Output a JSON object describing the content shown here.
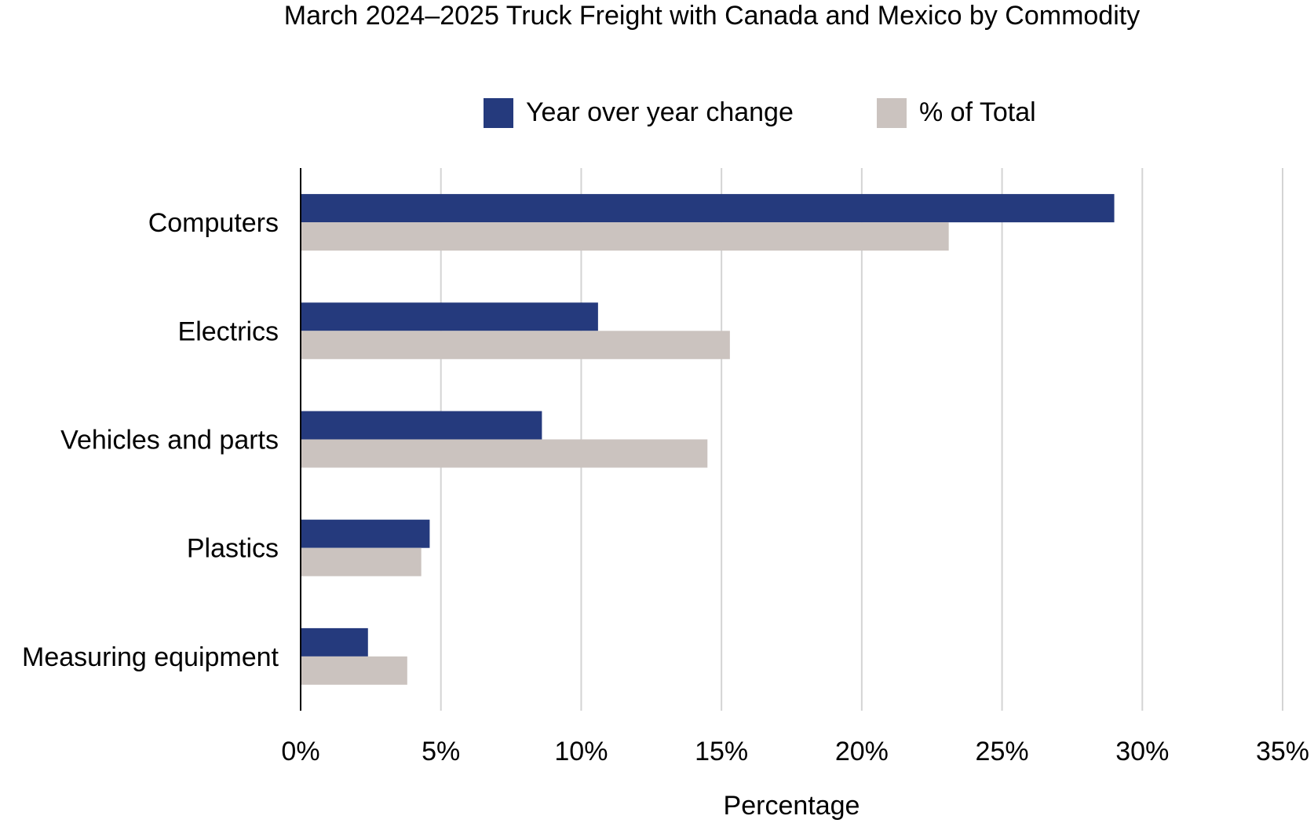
{
  "chart_data": {
    "type": "bar",
    "orientation": "horizontal",
    "title": "March 2024–2025 Truck Freight with Canada and Mexico by Commodity",
    "xlabel": "Percentage",
    "ylabel": "",
    "categories": [
      "Computers",
      "Electrics",
      "Vehicles and parts",
      "Plastics",
      "Measuring equipment"
    ],
    "series": [
      {
        "name": "Year over year change",
        "color": "#253a7d",
        "values": [
          29.0,
          10.6,
          8.6,
          4.6,
          2.4
        ]
      },
      {
        "name": "% of Total",
        "color": "#cbc3bf",
        "values": [
          23.1,
          15.3,
          14.5,
          4.3,
          3.8
        ]
      }
    ],
    "xlim": [
      0,
      35
    ],
    "xticks": [
      0,
      5,
      10,
      15,
      20,
      25,
      30,
      35
    ],
    "xtick_labels": [
      "0%",
      "5%",
      "10%",
      "15%",
      "20%",
      "25%",
      "30%",
      "35%"
    ],
    "grid": "vertical",
    "legend_position": "top"
  }
}
